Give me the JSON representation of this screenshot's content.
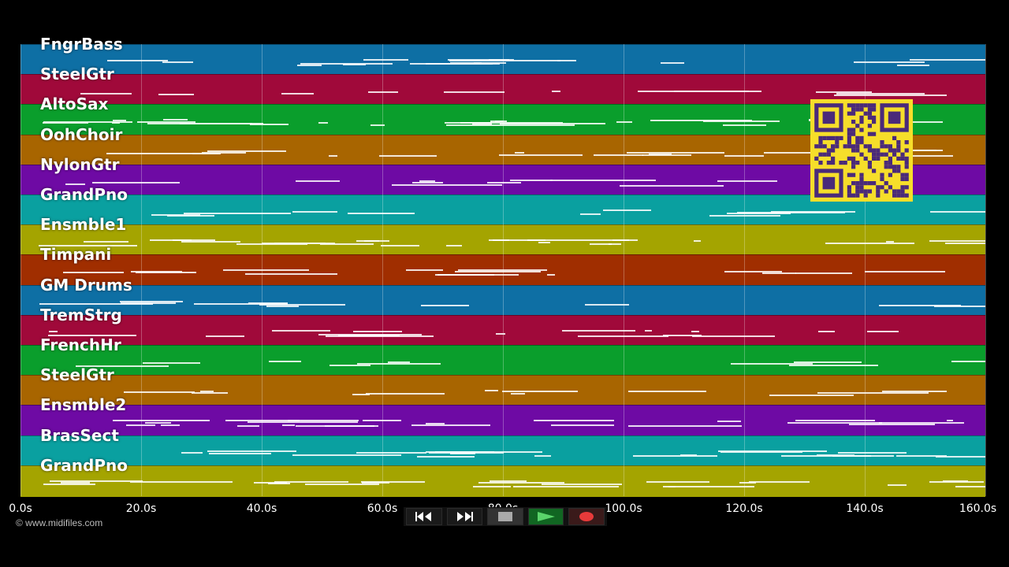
{
  "tracks": [
    {
      "name": "FngrBass",
      "color": "#0e6fa4"
    },
    {
      "name": "SteelGtr",
      "color": "#a0093a"
    },
    {
      "name": "AltoSax",
      "color": "#0a9e2c"
    },
    {
      "name": "OohChoir",
      "color": "#a86500"
    },
    {
      "name": "NylonGtr",
      "color": "#6e0aa4"
    },
    {
      "name": "GrandPno",
      "color": "#0aa0a0"
    },
    {
      "name": "Ensmble1",
      "color": "#a4a400"
    },
    {
      "name": "Timpani",
      "color": "#a02e00"
    },
    {
      "name": "GM Drums",
      "color": "#0e6fa4"
    },
    {
      "name": "TremStrg",
      "color": "#a0093a"
    },
    {
      "name": "FrenchHr",
      "color": "#0a9e2c"
    },
    {
      "name": "SteelGtr",
      "color": "#a86500"
    },
    {
      "name": "Ensmble2",
      "color": "#6e0aa4"
    },
    {
      "name": "BrasSect",
      "color": "#0aa0a0"
    },
    {
      "name": "GrandPno",
      "color": "#a4a400"
    }
  ],
  "timeline": {
    "ticks": [
      "0.0s",
      "20.0s",
      "40.0s",
      "60.0s",
      "80.0s",
      "100.0s",
      "120.0s",
      "140.0s",
      "160.0s"
    ]
  },
  "footer": {
    "copyright": "© www.midifiles.com"
  },
  "controls": {
    "rewind": "rewind-icon",
    "fast_forward": "fast-forward-icon",
    "stop": "stop-icon",
    "play": "play-icon",
    "record": "record-icon"
  }
}
